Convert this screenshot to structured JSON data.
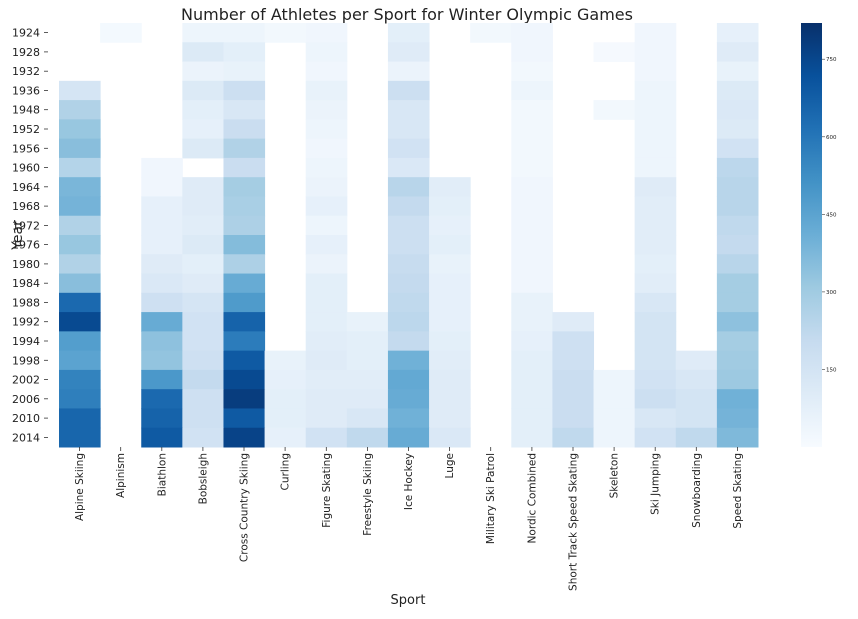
{
  "chart_data": {
    "type": "heatmap",
    "title": "Number of Athletes per Sport for Winter Olympic Games",
    "xlabel": "Sport",
    "ylabel": "Year",
    "colormap": [
      "#f7fbff",
      "#deebf7",
      "#c6dbef",
      "#9ecae1",
      "#6baed6",
      "#4292c6",
      "#2171b5",
      "#08519c",
      "#08306b"
    ],
    "vmin": 0,
    "vmax": 820,
    "colorbar_ticks": [
      150,
      300,
      450,
      600,
      750
    ],
    "years": [
      "1924",
      "1928",
      "1932",
      "1936",
      "1948",
      "1952",
      "1956",
      "1960",
      "1964",
      "1968",
      "1972",
      "1976",
      "1980",
      "1984",
      "1988",
      "1992",
      "1994",
      "1998",
      "2002",
      "2006",
      "2010",
      "2014"
    ],
    "sports": [
      "Alpine Skiing",
      "Alpinism",
      "Biathlon",
      "Bobsleigh",
      "Cross Country Skiing",
      "Curling",
      "Figure Skating",
      "Freestyle Skiing",
      "Ice Hockey",
      "Luge",
      "Military Ski Patrol",
      "Nordic Combined",
      "Short Track Speed Skating",
      "Skeleton",
      "Ski Jumping",
      "Snowboarding",
      "Speed Skating"
    ],
    "values": [
      [
        null,
        15,
        null,
        40,
        40,
        20,
        30,
        null,
        80,
        null,
        20,
        30,
        null,
        null,
        30,
        null,
        70
      ],
      [
        null,
        null,
        null,
        110,
        80,
        null,
        40,
        null,
        100,
        null,
        null,
        30,
        null,
        10,
        30,
        null,
        100
      ],
      [
        null,
        null,
        null,
        50,
        60,
        null,
        30,
        null,
        50,
        null,
        null,
        20,
        null,
        null,
        30,
        null,
        60
      ],
      [
        140,
        null,
        null,
        110,
        180,
        null,
        60,
        null,
        180,
        null,
        null,
        40,
        null,
        null,
        40,
        null,
        110
      ],
      [
        260,
        null,
        null,
        80,
        130,
        null,
        50,
        null,
        130,
        null,
        null,
        20,
        null,
        20,
        40,
        null,
        120
      ],
      [
        320,
        null,
        null,
        70,
        190,
        null,
        40,
        null,
        130,
        null,
        null,
        20,
        null,
        null,
        40,
        null,
        110
      ],
      [
        350,
        null,
        null,
        110,
        260,
        null,
        30,
        null,
        160,
        null,
        null,
        20,
        null,
        null,
        40,
        null,
        160
      ],
      [
        250,
        null,
        30,
        null,
        190,
        null,
        40,
        null,
        120,
        null,
        null,
        20,
        null,
        null,
        40,
        null,
        230
      ],
      [
        380,
        null,
        30,
        100,
        290,
        null,
        50,
        null,
        240,
        90,
        null,
        30,
        null,
        null,
        100,
        null,
        240
      ],
      [
        390,
        null,
        70,
        100,
        280,
        null,
        70,
        null,
        210,
        80,
        null,
        30,
        null,
        null,
        90,
        null,
        240
      ],
      [
        260,
        null,
        70,
        90,
        270,
        null,
        40,
        null,
        180,
        70,
        null,
        30,
        null,
        null,
        90,
        null,
        220
      ],
      [
        320,
        null,
        70,
        110,
        360,
        null,
        70,
        null,
        180,
        80,
        null,
        30,
        null,
        null,
        90,
        null,
        210
      ],
      [
        260,
        null,
        100,
        80,
        270,
        null,
        50,
        null,
        200,
        60,
        null,
        30,
        null,
        null,
        80,
        null,
        240
      ],
      [
        350,
        null,
        120,
        100,
        420,
        null,
        80,
        null,
        210,
        70,
        null,
        30,
        null,
        null,
        90,
        null,
        290
      ],
      [
        640,
        null,
        170,
        140,
        480,
        null,
        80,
        null,
        220,
        70,
        null,
        60,
        null,
        null,
        130,
        null,
        290
      ],
      [
        740,
        null,
        420,
        160,
        660,
        null,
        80,
        60,
        230,
        70,
        null,
        60,
        100,
        null,
        150,
        null,
        340
      ],
      [
        470,
        null,
        340,
        160,
        580,
        null,
        90,
        80,
        210,
        80,
        null,
        70,
        170,
        null,
        150,
        null,
        290
      ],
      [
        450,
        null,
        330,
        170,
        690,
        60,
        100,
        80,
        400,
        90,
        null,
        80,
        170,
        null,
        150,
        100,
        300
      ],
      [
        560,
        null,
        490,
        210,
        740,
        70,
        90,
        90,
        430,
        100,
        null,
        80,
        190,
        40,
        160,
        130,
        310
      ],
      [
        570,
        null,
        640,
        170,
        780,
        80,
        100,
        100,
        420,
        100,
        null,
        80,
        190,
        40,
        180,
        150,
        400
      ],
      [
        650,
        null,
        660,
        170,
        690,
        80,
        100,
        130,
        400,
        100,
        null,
        80,
        190,
        40,
        130,
        150,
        390
      ],
      [
        650,
        null,
        690,
        160,
        760,
        70,
        160,
        220,
        420,
        120,
        null,
        80,
        220,
        40,
        160,
        220,
        370
      ]
    ]
  }
}
